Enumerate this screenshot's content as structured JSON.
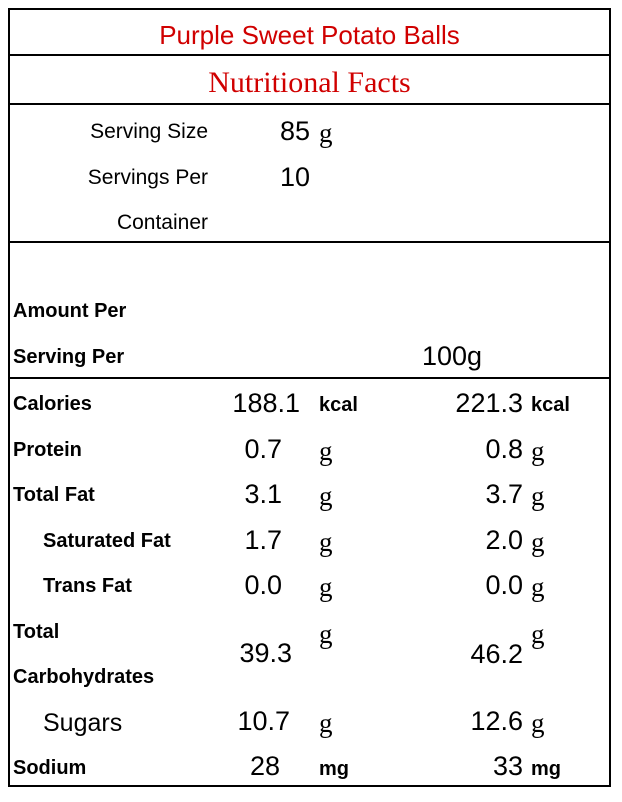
{
  "title": "Purple Sweet Potato Balls",
  "subtitle": "Nutritional Facts",
  "serving": {
    "size_label": "Serving Size",
    "size_value": "85",
    "size_unit": "g",
    "per_label_line1": "Servings Per",
    "per_label_line2": "Container",
    "per_value": "10"
  },
  "header": {
    "amount_line1": "Amount Per",
    "amount_line2": "Serving Per",
    "per100": "100g"
  },
  "nutrients": [
    {
      "name": "Calories",
      "serving": "188.1",
      "unit": "kcal",
      "per100": "221.3",
      "unit100": "kcal"
    },
    {
      "name": "Protein",
      "serving": "0.7",
      "unit": "g",
      "per100": "0.8",
      "unit100": "g"
    },
    {
      "name": "Total Fat",
      "serving": "3.1",
      "unit": "g",
      "per100": "3.7",
      "unit100": "g"
    },
    {
      "name": "Saturated Fat",
      "serving": "1.7",
      "unit": "g",
      "per100": "2.0",
      "unit100": "g"
    },
    {
      "name": "Trans Fat",
      "serving": "0.0",
      "unit": "g",
      "per100": "0.0",
      "unit100": "g"
    },
    {
      "name_line1": "Total",
      "name_line2": "Carbohydrates",
      "serving": "39.3",
      "unit": "g",
      "per100": "46.2",
      "unit100": "g"
    },
    {
      "name": "Sugars",
      "serving": "10.7",
      "unit": "g",
      "per100": "12.6",
      "unit100": "g"
    },
    {
      "name": "Sodium",
      "serving": "28",
      "unit": "mg",
      "per100": "33",
      "unit100": "mg"
    }
  ]
}
